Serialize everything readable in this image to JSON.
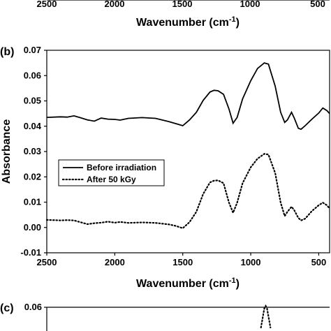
{
  "top_fragment": {
    "xticks": [
      "2500",
      "2000",
      "1500",
      "1000",
      "500"
    ],
    "xlabel": "Wavenumber (cm",
    "xlabel_sup": "-1",
    "xlabel_close": ")"
  },
  "chart_data": [
    {
      "panel": "(b)",
      "type": "line",
      "xlabel": "Wavenumber (cm",
      "xlabel_sup": "-1",
      "xlabel_close": ")",
      "ylabel": "Absorbance",
      "xlim": [
        2500,
        420
      ],
      "ylim": [
        -0.01,
        0.07
      ],
      "xticks": [
        2500,
        2000,
        1500,
        1000,
        500
      ],
      "yticks": [
        -0.01,
        0.0,
        0.01,
        0.02,
        0.03,
        0.04,
        0.05,
        0.06,
        0.07
      ],
      "ytick_labels": [
        "-0.01",
        "0.00",
        "0.01",
        "0.02",
        "0.03",
        "0.04",
        "0.05",
        "0.06",
        "0.07"
      ],
      "legend_position": "left-middle",
      "series": [
        {
          "name": "Before irradiation",
          "style": "solid",
          "points": [
            [
              2500,
              0.0435
            ],
            [
              2400,
              0.0437
            ],
            [
              2350,
              0.0436
            ],
            [
              2300,
              0.0441
            ],
            [
              2260,
              0.0435
            ],
            [
              2200,
              0.0425
            ],
            [
              2150,
              0.042
            ],
            [
              2100,
              0.0432
            ],
            [
              2050,
              0.0428
            ],
            [
              2000,
              0.0427
            ],
            [
              1960,
              0.0424
            ],
            [
              1900,
              0.0431
            ],
            [
              1800,
              0.0434
            ],
            [
              1700,
              0.0431
            ],
            [
              1600,
              0.0418
            ],
            [
              1550,
              0.041
            ],
            [
              1500,
              0.0402
            ],
            [
              1450,
              0.0425
            ],
            [
              1400,
              0.0455
            ],
            [
              1350,
              0.0502
            ],
            [
              1300,
              0.0535
            ],
            [
              1270,
              0.0542
            ],
            [
              1240,
              0.054
            ],
            [
              1200,
              0.0526
            ],
            [
              1160,
              0.0468
            ],
            [
              1130,
              0.0412
            ],
            [
              1100,
              0.0435
            ],
            [
              1060,
              0.0508
            ],
            [
              1000,
              0.058
            ],
            [
              950,
              0.0628
            ],
            [
              900,
              0.065
            ],
            [
              870,
              0.0645
            ],
            [
              820,
              0.0558
            ],
            [
              780,
              0.0455
            ],
            [
              750,
              0.0415
            ],
            [
              730,
              0.0425
            ],
            [
              700,
              0.0455
            ],
            [
              680,
              0.0432
            ],
            [
              650,
              0.0392
            ],
            [
              630,
              0.0388
            ],
            [
              600,
              0.0402
            ],
            [
              550,
              0.0428
            ],
            [
              500,
              0.0452
            ],
            [
              470,
              0.0472
            ],
            [
              440,
              0.0462
            ],
            [
              420,
              0.045
            ]
          ]
        },
        {
          "name": "After 50 kGy",
          "style": "dotted",
          "points": [
            [
              2500,
              0.003
            ],
            [
              2400,
              0.0028
            ],
            [
              2350,
              0.0029
            ],
            [
              2300,
              0.0028
            ],
            [
              2260,
              0.0022
            ],
            [
              2200,
              0.0013
            ],
            [
              2150,
              0.0017
            ],
            [
              2100,
              0.0019
            ],
            [
              2050,
              0.0023
            ],
            [
              2000,
              0.0019
            ],
            [
              1960,
              0.0022
            ],
            [
              1900,
              0.0018
            ],
            [
              1800,
              0.002
            ],
            [
              1700,
              0.0018
            ],
            [
              1600,
              0.0012
            ],
            [
              1550,
              0.0006
            ],
            [
              1500,
              -0.0003
            ],
            [
              1450,
              0.0021
            ],
            [
              1400,
              0.0062
            ],
            [
              1350,
              0.0132
            ],
            [
              1300,
              0.0178
            ],
            [
              1270,
              0.0185
            ],
            [
              1240,
              0.0186
            ],
            [
              1200,
              0.0175
            ],
            [
              1160,
              0.0098
            ],
            [
              1130,
              0.0058
            ],
            [
              1100,
              0.0098
            ],
            [
              1060,
              0.0175
            ],
            [
              1000,
              0.0238
            ],
            [
              950,
              0.0272
            ],
            [
              900,
              0.0291
            ],
            [
              870,
              0.0288
            ],
            [
              820,
              0.0215
            ],
            [
              780,
              0.0098
            ],
            [
              750,
              0.0045
            ],
            [
              730,
              0.0062
            ],
            [
              700,
              0.0082
            ],
            [
              680,
              0.0068
            ],
            [
              650,
              0.0038
            ],
            [
              630,
              0.0028
            ],
            [
              600,
              0.0035
            ],
            [
              550,
              0.0065
            ],
            [
              500,
              0.0088
            ],
            [
              470,
              0.0098
            ],
            [
              440,
              0.0088
            ],
            [
              420,
              0.0075
            ]
          ]
        }
      ]
    },
    {
      "panel": "(c)",
      "type": "line",
      "ylim_top": 0.06,
      "ytick_labels": [
        "0.06"
      ],
      "series": [
        {
          "style": "dotted",
          "points": [
            [
              925,
              0.052
            ],
            [
              900,
              0.0595
            ],
            [
              890,
              0.0605
            ],
            [
              880,
              0.0595
            ],
            [
              855,
              0.052
            ]
          ]
        }
      ]
    }
  ]
}
